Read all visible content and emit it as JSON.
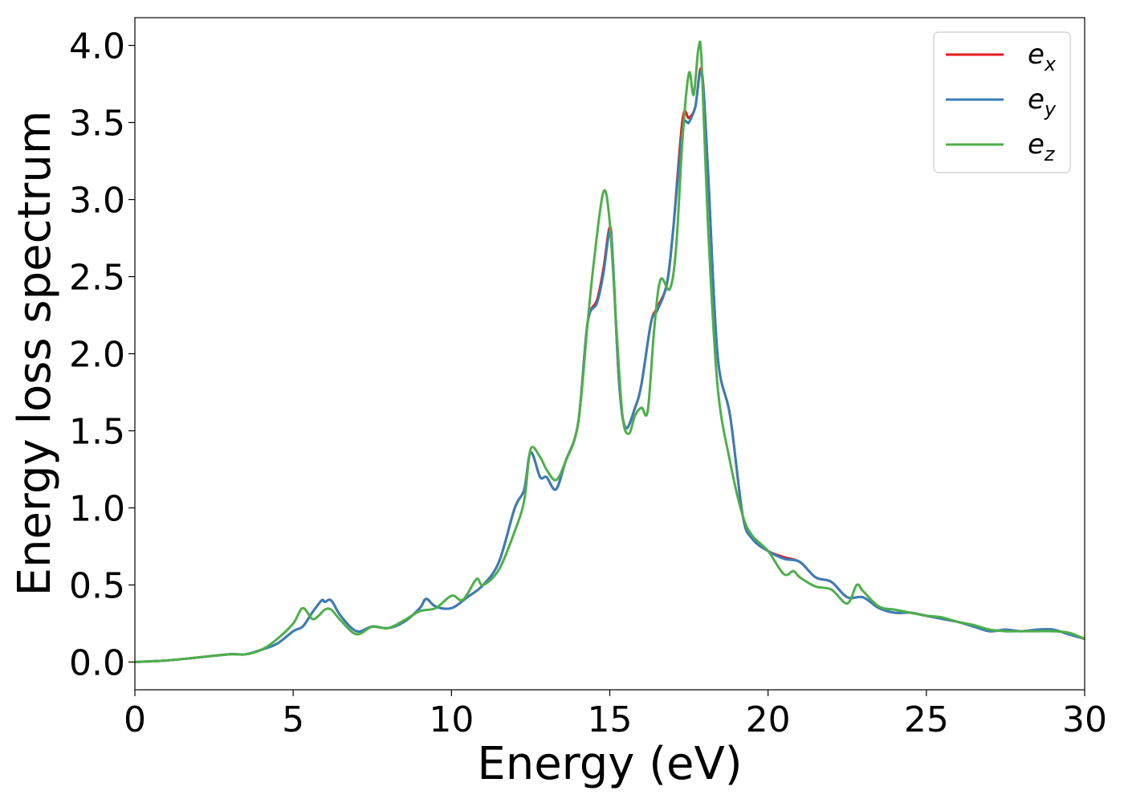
{
  "chart_data": {
    "type": "line",
    "title": "",
    "xlabel": "Energy (eV)",
    "ylabel": "Energy loss spectrum",
    "xlim": [
      0,
      30
    ],
    "ylim": [
      -0.18,
      4.18
    ],
    "xticks": [
      0,
      5,
      10,
      15,
      20,
      25,
      30
    ],
    "yticks": [
      0.0,
      0.5,
      1.0,
      1.5,
      2.0,
      2.5,
      3.0,
      3.5,
      4.0
    ],
    "xtick_labels": [
      "0",
      "5",
      "10",
      "15",
      "20",
      "25",
      "30"
    ],
    "ytick_labels": [
      "0.0",
      "0.5",
      "1.0",
      "1.5",
      "2.0",
      "2.5",
      "3.0",
      "3.5",
      "4.0"
    ],
    "grid": false,
    "legend_position": "top-right",
    "series": [
      {
        "name": "e_x",
        "legend_base": "e",
        "legend_sub": "x",
        "color": "#e41a1c",
        "x": [
          0,
          1,
          2,
          3,
          3.5,
          4,
          4.5,
          5,
          5.3,
          5.6,
          5.9,
          6.0,
          6.2,
          6.5,
          7,
          7.5,
          8,
          8.5,
          9,
          9.2,
          9.5,
          10,
          10.5,
          11,
          11.5,
          12,
          12.3,
          12.5,
          12.8,
          13,
          13.3,
          13.6,
          14,
          14.3,
          14.6,
          14.8,
          15.0,
          15.1,
          15.3,
          15.5,
          15.8,
          16,
          16.3,
          16.5,
          16.8,
          17,
          17.3,
          17.5,
          17.7,
          17.9,
          18.1,
          18.4,
          18.8,
          19.2,
          19.5,
          20,
          20.5,
          21,
          21.5,
          22,
          22.5,
          23,
          23.5,
          24,
          24.5,
          25,
          25.5,
          26,
          26.5,
          27,
          27.5,
          28,
          28.5,
          29,
          29.5,
          30
        ],
        "values": [
          0.0,
          0.01,
          0.03,
          0.05,
          0.05,
          0.08,
          0.12,
          0.2,
          0.23,
          0.32,
          0.4,
          0.39,
          0.4,
          0.3,
          0.2,
          0.23,
          0.22,
          0.26,
          0.35,
          0.41,
          0.36,
          0.35,
          0.42,
          0.5,
          0.65,
          1.0,
          1.12,
          1.36,
          1.2,
          1.2,
          1.12,
          1.3,
          1.55,
          2.2,
          2.35,
          2.55,
          2.82,
          2.6,
          1.8,
          1.52,
          1.65,
          1.8,
          2.2,
          2.3,
          2.45,
          2.8,
          3.52,
          3.53,
          3.6,
          3.84,
          3.2,
          2.0,
          1.6,
          0.95,
          0.8,
          0.72,
          0.68,
          0.65,
          0.55,
          0.52,
          0.42,
          0.42,
          0.35,
          0.32,
          0.32,
          0.3,
          0.28,
          0.26,
          0.23,
          0.2,
          0.21,
          0.2,
          0.21,
          0.21,
          0.18,
          0.15
        ]
      },
      {
        "name": "e_y",
        "legend_base": "e",
        "legend_sub": "y",
        "color": "#377eb8",
        "x": [
          0,
          1,
          2,
          3,
          3.5,
          4,
          4.5,
          5,
          5.3,
          5.6,
          5.9,
          6.0,
          6.2,
          6.5,
          7,
          7.5,
          8,
          8.5,
          9,
          9.2,
          9.5,
          10,
          10.5,
          11,
          11.5,
          12,
          12.3,
          12.5,
          12.8,
          13,
          13.3,
          13.6,
          14,
          14.3,
          14.6,
          14.8,
          15.0,
          15.1,
          15.3,
          15.5,
          15.8,
          16,
          16.3,
          16.5,
          16.8,
          17,
          17.3,
          17.5,
          17.7,
          17.9,
          18.1,
          18.4,
          18.8,
          19.2,
          19.5,
          20,
          20.5,
          21,
          21.5,
          22,
          22.5,
          23,
          23.5,
          24,
          24.5,
          25,
          25.5,
          26,
          26.5,
          27,
          27.5,
          28,
          28.5,
          29,
          29.5,
          30
        ],
        "values": [
          0.0,
          0.01,
          0.03,
          0.05,
          0.05,
          0.08,
          0.12,
          0.2,
          0.23,
          0.32,
          0.4,
          0.39,
          0.4,
          0.3,
          0.2,
          0.23,
          0.22,
          0.26,
          0.35,
          0.41,
          0.36,
          0.35,
          0.42,
          0.5,
          0.65,
          1.0,
          1.12,
          1.36,
          1.2,
          1.2,
          1.12,
          1.3,
          1.55,
          2.2,
          2.33,
          2.52,
          2.8,
          2.6,
          1.8,
          1.52,
          1.65,
          1.8,
          2.2,
          2.28,
          2.45,
          2.8,
          3.45,
          3.5,
          3.6,
          3.82,
          3.2,
          2.0,
          1.6,
          0.95,
          0.8,
          0.72,
          0.67,
          0.65,
          0.55,
          0.52,
          0.42,
          0.42,
          0.35,
          0.32,
          0.32,
          0.3,
          0.28,
          0.26,
          0.23,
          0.2,
          0.21,
          0.2,
          0.21,
          0.21,
          0.18,
          0.15
        ]
      },
      {
        "name": "e_z",
        "legend_base": "e",
        "legend_sub": "z",
        "color": "#4daf4a",
        "x": [
          0,
          1,
          2,
          3,
          3.5,
          4,
          4.5,
          5,
          5.3,
          5.6,
          5.8,
          6.0,
          6.2,
          6.5,
          7,
          7.5,
          8,
          8.5,
          9,
          9.5,
          10,
          10.3,
          10.5,
          10.8,
          11,
          11.5,
          12,
          12.3,
          12.5,
          12.8,
          13,
          13.3,
          13.6,
          14,
          14.3,
          14.5,
          14.8,
          15.0,
          15.2,
          15.4,
          15.6,
          15.8,
          16,
          16.2,
          16.4,
          16.6,
          16.9,
          17.1,
          17.3,
          17.5,
          17.65,
          17.8,
          17.9,
          18.1,
          18.4,
          18.8,
          19.2,
          19.5,
          20,
          20.5,
          20.8,
          21,
          21.5,
          22,
          22.5,
          22.8,
          23,
          23.5,
          24,
          24.5,
          25,
          25.5,
          26,
          26.5,
          27,
          27.5,
          28,
          28.5,
          29,
          29.5,
          30
        ],
        "values": [
          0.0,
          0.01,
          0.03,
          0.05,
          0.05,
          0.08,
          0.15,
          0.25,
          0.35,
          0.28,
          0.3,
          0.34,
          0.34,
          0.27,
          0.18,
          0.23,
          0.22,
          0.27,
          0.33,
          0.35,
          0.43,
          0.4,
          0.44,
          0.54,
          0.5,
          0.6,
          0.85,
          1.05,
          1.38,
          1.33,
          1.25,
          1.18,
          1.3,
          1.55,
          2.2,
          2.6,
          3.05,
          2.85,
          2.2,
          1.6,
          1.48,
          1.6,
          1.65,
          1.63,
          2.15,
          2.48,
          2.42,
          2.7,
          3.4,
          3.82,
          3.68,
          3.98,
          3.9,
          2.85,
          1.8,
          1.3,
          0.95,
          0.82,
          0.72,
          0.57,
          0.59,
          0.55,
          0.49,
          0.47,
          0.38,
          0.5,
          0.46,
          0.36,
          0.34,
          0.32,
          0.3,
          0.29,
          0.26,
          0.24,
          0.21,
          0.2,
          0.2,
          0.2,
          0.2,
          0.19,
          0.15
        ]
      }
    ]
  }
}
